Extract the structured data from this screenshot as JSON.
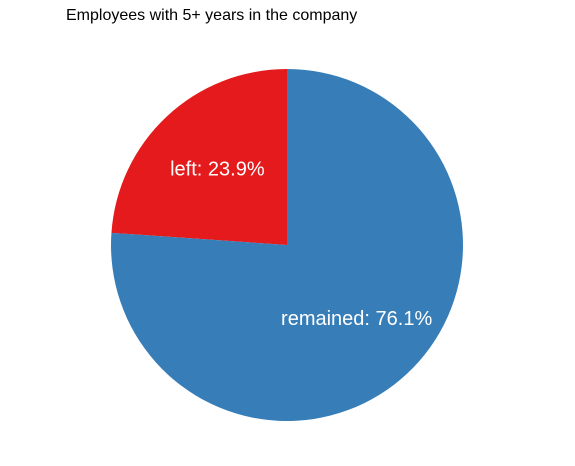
{
  "chart_data": {
    "type": "pie",
    "title": "Employees with 5+ years in the company",
    "slices": [
      {
        "name": "left",
        "value": 23.9,
        "color": "#e41a1c",
        "label": "left: 23.9%"
      },
      {
        "name": "remained",
        "value": 76.1,
        "color": "#377eb8",
        "label": "remained: 76.1%"
      }
    ],
    "legend": "none"
  }
}
